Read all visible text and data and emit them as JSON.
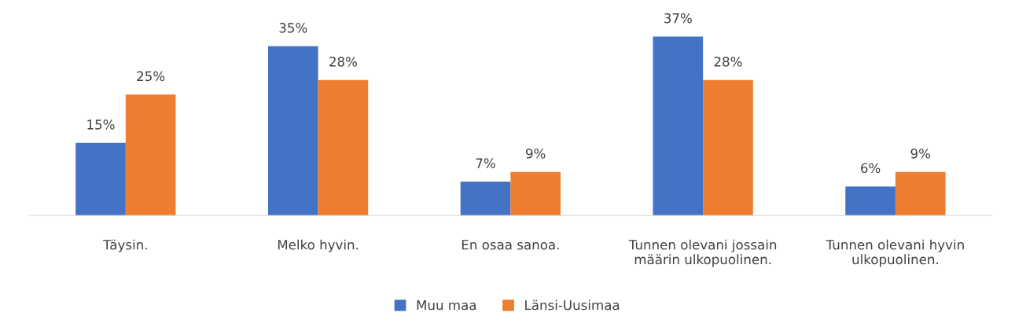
{
  "chart_data": {
    "type": "bar",
    "categories": [
      "Täysin.",
      "Melko hyvin.",
      "En osaa sanoa.",
      "Tunnen olevani jossain\nmäärin ulkopuolinen.",
      "Tunnen olevani hyvin\nulkopuolinen."
    ],
    "series": [
      {
        "name": "Muu maa",
        "color": "#4472c4",
        "values": [
          15,
          35,
          7,
          37,
          6
        ],
        "value_labels": [
          "15%",
          "35%",
          "7%",
          "37%",
          "6%"
        ]
      },
      {
        "name": "Länsi-Uusimaa",
        "color": "#ed7d31",
        "values": [
          25,
          28,
          9,
          28,
          9
        ],
        "value_labels": [
          "25%",
          "28%",
          "9%",
          "28%",
          "9%"
        ]
      }
    ],
    "tick_labels": "x",
    "grid": false,
    "legend": "bottom"
  }
}
